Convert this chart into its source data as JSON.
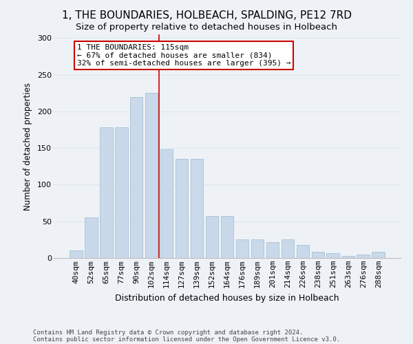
{
  "title": "1, THE BOUNDARIES, HOLBEACH, SPALDING, PE12 7RD",
  "subtitle": "Size of property relative to detached houses in Holbeach",
  "xlabel": "Distribution of detached houses by size in Holbeach",
  "ylabel": "Number of detached properties",
  "categories": [
    "40sqm",
    "52sqm",
    "65sqm",
    "77sqm",
    "90sqm",
    "102sqm",
    "114sqm",
    "127sqm",
    "139sqm",
    "152sqm",
    "164sqm",
    "176sqm",
    "189sqm",
    "201sqm",
    "214sqm",
    "226sqm",
    "238sqm",
    "251sqm",
    "263sqm",
    "276sqm",
    "288sqm"
  ],
  "values": [
    10,
    55,
    178,
    178,
    220,
    225,
    148,
    135,
    135,
    57,
    57,
    25,
    25,
    22,
    25,
    18,
    8,
    7,
    3,
    5,
    8
  ],
  "bar_color": "#c9d9ea",
  "bar_edge_color": "#aec6d8",
  "grid_color": "#dde6ef",
  "background_color": "#eef2f7",
  "annotation_text": "1 THE BOUNDARIES: 115sqm\n← 67% of detached houses are smaller (834)\n32% of semi-detached houses are larger (395) →",
  "annotation_box_color": "#ffffff",
  "annotation_box_edge": "#cc0000",
  "marker_line_color": "#cc0000",
  "footer_line1": "Contains HM Land Registry data © Crown copyright and database right 2024.",
  "footer_line2": "Contains public sector information licensed under the Open Government Licence v3.0.",
  "ylim": [
    0,
    305
  ],
  "yticks": [
    0,
    50,
    100,
    150,
    200,
    250,
    300
  ],
  "title_fontsize": 11,
  "subtitle_fontsize": 9.5,
  "xlabel_fontsize": 9,
  "ylabel_fontsize": 8.5,
  "tick_fontsize": 8,
  "annot_fontsize": 8,
  "footer_fontsize": 6.5
}
